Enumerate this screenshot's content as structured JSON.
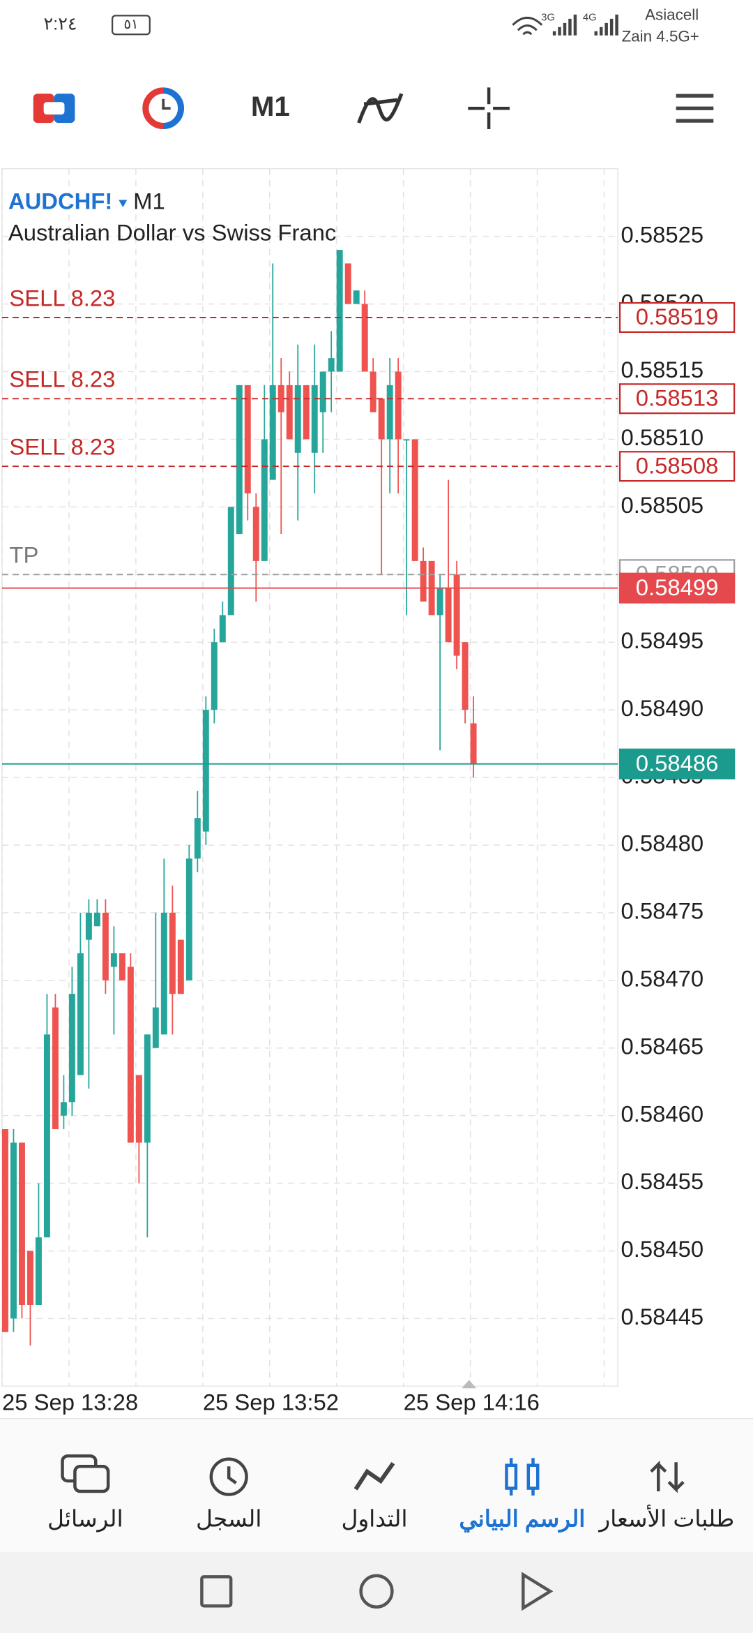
{
  "status_bar": {
    "time": "٢:٢٤",
    "battery": "٥١",
    "network_3g": "3G",
    "network_4g": "4G",
    "carrier_1": "Asiacell",
    "carrier_2": "Zain 4.5G+"
  },
  "toolbar": {
    "timeframe": "M1"
  },
  "chart_data": {
    "type": "candlestick",
    "symbol": "AUDCHF!",
    "timeframe": "M1",
    "subtitle": "Australian Dollar vs Swiss Franc",
    "categories": [
      "25 Sep 13:28",
      null,
      null,
      null,
      null,
      null,
      null,
      null,
      null,
      null,
      null,
      null,
      null,
      null,
      null,
      null,
      null,
      null,
      null,
      null,
      null,
      null,
      null,
      null,
      "25 Sep 13:52",
      null,
      null,
      null,
      null,
      null,
      null,
      null,
      null,
      null,
      null,
      null,
      null,
      null,
      null,
      null,
      null,
      null,
      null,
      null,
      null,
      null,
      null,
      null,
      "25 Sep 14:16",
      null,
      null,
      null,
      null,
      null,
      null,
      null,
      null
    ],
    "open": [
      0.58459,
      0.58445,
      0.58458,
      0.5845,
      0.58446,
      0.58451,
      0.58468,
      0.5846,
      0.58461,
      0.58463,
      0.58473,
      0.58474,
      0.58475,
      0.58471,
      0.58472,
      0.58471,
      0.58463,
      0.58458,
      0.58465,
      0.58466,
      0.58475,
      0.58473,
      0.5847,
      0.58479,
      0.58481,
      0.5849,
      0.58495,
      0.58497,
      0.58503,
      0.58514,
      0.58505,
      0.58501,
      0.58507,
      0.58514,
      0.58514,
      0.58509,
      0.58514,
      0.58509,
      0.58512,
      0.58515,
      0.58515,
      0.58523,
      0.5852,
      0.5852,
      0.58515,
      0.58513,
      0.5851,
      0.58515,
      0.5851,
      0.5851,
      0.58501,
      0.58501,
      0.58497,
      0.58499,
      0.585,
      0.58495,
      0.58489
    ],
    "high": [
      0.58459,
      0.58459,
      0.58458,
      0.5845,
      0.58455,
      0.58469,
      0.58469,
      0.58463,
      0.58471,
      0.58475,
      0.58476,
      0.58476,
      0.58476,
      0.58474,
      0.58472,
      0.58472,
      0.58463,
      0.58466,
      0.58475,
      0.58479,
      0.58477,
      0.58473,
      0.5848,
      0.58484,
      0.58491,
      0.58496,
      0.58498,
      0.58505,
      0.58514,
      0.58514,
      0.58506,
      0.58514,
      0.58523,
      0.58516,
      0.58515,
      0.58517,
      0.58514,
      0.58517,
      0.58515,
      0.58518,
      0.58524,
      0.58523,
      0.58521,
      0.58521,
      0.58516,
      0.58513,
      0.58516,
      0.58516,
      0.5851,
      0.5851,
      0.58502,
      0.58501,
      0.585,
      0.58507,
      0.58501,
      0.58495,
      0.58491
    ],
    "low": [
      0.58444,
      0.58444,
      0.58445,
      0.58443,
      0.58446,
      0.58451,
      0.58459,
      0.58459,
      0.5846,
      0.58463,
      0.58462,
      0.58474,
      0.58469,
      0.58466,
      0.5847,
      0.58458,
      0.58455,
      0.58451,
      0.58465,
      0.58466,
      0.58466,
      0.58469,
      0.5847,
      0.58478,
      0.5848,
      0.58489,
      0.58495,
      0.58497,
      0.58503,
      0.58504,
      0.58498,
      0.58501,
      0.58507,
      0.58503,
      0.5851,
      0.58504,
      0.5851,
      0.58506,
      0.58509,
      0.58512,
      0.58515,
      0.5852,
      0.5852,
      0.58515,
      0.58512,
      0.585,
      0.58506,
      0.58506,
      0.58497,
      0.58501,
      0.58498,
      0.58497,
      0.58487,
      0.58495,
      0.58493,
      0.58489,
      0.58485
    ],
    "close": [
      0.58444,
      0.58458,
      0.58446,
      0.58446,
      0.58451,
      0.58466,
      0.58459,
      0.58461,
      0.58469,
      0.58472,
      0.58475,
      0.58475,
      0.5847,
      0.58472,
      0.5847,
      0.58458,
      0.58458,
      0.58466,
      0.58468,
      0.58475,
      0.58469,
      0.58469,
      0.58479,
      0.58482,
      0.5849,
      0.58495,
      0.58497,
      0.58505,
      0.58514,
      0.58506,
      0.58501,
      0.5851,
      0.58514,
      0.58512,
      0.5851,
      0.58514,
      0.5851,
      0.58514,
      0.58515,
      0.58516,
      0.58524,
      0.5852,
      0.58521,
      0.58515,
      0.58512,
      0.5851,
      0.58514,
      0.5851,
      0.5851,
      0.58501,
      0.58498,
      0.58497,
      0.58499,
      0.58495,
      0.58494,
      0.5849,
      0.58486
    ],
    "up_color": "#26a69a",
    "down_color": "#ef5350",
    "ylim": [
      0.5844,
      0.5853
    ],
    "yticks": [
      {
        "value": 0.58525,
        "label": "0.58525"
      },
      {
        "value": 0.5852,
        "label": "0.58520"
      },
      {
        "value": 0.58515,
        "label": "0.58515"
      },
      {
        "value": 0.5851,
        "label": "0.58510"
      },
      {
        "value": 0.58505,
        "label": "0.58505"
      },
      {
        "value": 0.585,
        "label": "0.58500"
      },
      {
        "value": 0.58495,
        "label": "0.58495"
      },
      {
        "value": 0.5849,
        "label": "0.58490"
      },
      {
        "value": 0.58485,
        "label": "0.58485"
      },
      {
        "value": 0.5848,
        "label": "0.58480"
      },
      {
        "value": 0.58475,
        "label": "0.58475"
      },
      {
        "value": 0.5847,
        "label": "0.58470"
      },
      {
        "value": 0.58465,
        "label": "0.58465"
      },
      {
        "value": 0.5846,
        "label": "0.58460"
      },
      {
        "value": 0.58455,
        "label": "0.58455"
      },
      {
        "value": 0.5845,
        "label": "0.58450"
      },
      {
        "value": 0.58445,
        "label": "0.58445"
      }
    ],
    "grid": true,
    "price_lines": [
      {
        "label": "SELL 8.23",
        "value": 0.58519,
        "value_label": "0.58519",
        "color": "#c62828",
        "style": "dashed",
        "tag": "outline"
      },
      {
        "label": "SELL 8.23",
        "value": 0.58513,
        "value_label": "0.58513",
        "color": "#c62828",
        "style": "dashed",
        "tag": "outline"
      },
      {
        "label": "SELL 8.23",
        "value": 0.58508,
        "value_label": "0.58508",
        "color": "#c62828",
        "style": "dashed",
        "tag": "outline"
      },
      {
        "label": "TP",
        "value": 0.585,
        "value_label": "0.58500",
        "color": "#9e9e9e",
        "style": "dashed",
        "tag": "outline"
      },
      {
        "value": 0.58499,
        "value_label": "0.58499",
        "color": "#e5484d",
        "style": "solid",
        "tag": "filled"
      },
      {
        "value": 0.58486,
        "value_label": "0.58486",
        "color": "#1a9b8e",
        "style": "solid",
        "tag": "filled"
      }
    ]
  },
  "bottom_nav": {
    "items": [
      {
        "label": "الرسائل"
      },
      {
        "label": "السجل"
      },
      {
        "label": "التداول"
      },
      {
        "label": "الرسم البياني"
      },
      {
        "label": "طلبات الأسعار"
      }
    ],
    "active": 3,
    "active_color": "#1e73d2"
  }
}
